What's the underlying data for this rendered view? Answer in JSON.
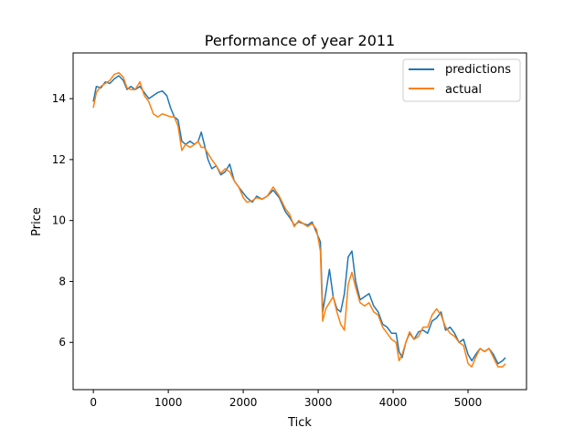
{
  "chart_data": {
    "type": "line",
    "title": "Performance of year 2011",
    "xlabel": "Tick",
    "ylabel": "Price",
    "xlim": [
      -270,
      5780
    ],
    "ylim": [
      4.45,
      15.5
    ],
    "xticks": [
      0,
      1000,
      2000,
      3000,
      4000,
      5000
    ],
    "yticks": [
      6,
      8,
      10,
      12,
      14
    ],
    "grid": false,
    "legend_position": "top-right",
    "series": [
      {
        "name": "predictions",
        "color": "#1f77b4",
        "points": [
          [
            0,
            13.9
          ],
          [
            40,
            14.4
          ],
          [
            100,
            14.35
          ],
          [
            160,
            14.55
          ],
          [
            220,
            14.5
          ],
          [
            280,
            14.65
          ],
          [
            340,
            14.75
          ],
          [
            400,
            14.6
          ],
          [
            450,
            14.3
          ],
          [
            500,
            14.4
          ],
          [
            560,
            14.3
          ],
          [
            620,
            14.4
          ],
          [
            680,
            14.2
          ],
          [
            740,
            14.0
          ],
          [
            800,
            14.1
          ],
          [
            860,
            14.2
          ],
          [
            920,
            14.25
          ],
          [
            980,
            14.1
          ],
          [
            1030,
            13.7
          ],
          [
            1080,
            13.4
          ],
          [
            1130,
            13.3
          ],
          [
            1180,
            12.6
          ],
          [
            1230,
            12.5
          ],
          [
            1290,
            12.6
          ],
          [
            1350,
            12.5
          ],
          [
            1400,
            12.6
          ],
          [
            1440,
            12.9
          ],
          [
            1480,
            12.5
          ],
          [
            1530,
            12.0
          ],
          [
            1580,
            11.7
          ],
          [
            1640,
            11.8
          ],
          [
            1700,
            11.5
          ],
          [
            1760,
            11.6
          ],
          [
            1820,
            11.85
          ],
          [
            1880,
            11.3
          ],
          [
            1940,
            11.1
          ],
          [
            2000,
            10.9
          ],
          [
            2050,
            10.75
          ],
          [
            2120,
            10.6
          ],
          [
            2180,
            10.8
          ],
          [
            2250,
            10.7
          ],
          [
            2320,
            10.8
          ],
          [
            2400,
            11.0
          ],
          [
            2480,
            10.75
          ],
          [
            2560,
            10.3
          ],
          [
            2620,
            10.1
          ],
          [
            2680,
            9.85
          ],
          [
            2740,
            9.95
          ],
          [
            2800,
            9.9
          ],
          [
            2860,
            9.85
          ],
          [
            2920,
            9.95
          ],
          [
            2980,
            9.6
          ],
          [
            3030,
            9.3
          ],
          [
            3060,
            7.0
          ],
          [
            3100,
            7.6
          ],
          [
            3150,
            8.4
          ],
          [
            3200,
            7.5
          ],
          [
            3250,
            7.1
          ],
          [
            3300,
            7.0
          ],
          [
            3350,
            7.6
          ],
          [
            3400,
            8.8
          ],
          [
            3450,
            9.0
          ],
          [
            3500,
            8.0
          ],
          [
            3560,
            7.4
          ],
          [
            3620,
            7.5
          ],
          [
            3680,
            7.6
          ],
          [
            3740,
            7.2
          ],
          [
            3800,
            7.0
          ],
          [
            3860,
            6.6
          ],
          [
            3920,
            6.5
          ],
          [
            3980,
            6.3
          ],
          [
            4040,
            6.3
          ],
          [
            4080,
            5.7
          ],
          [
            4120,
            5.5
          ],
          [
            4170,
            6.0
          ],
          [
            4220,
            6.3
          ],
          [
            4280,
            6.1
          ],
          [
            4340,
            6.35
          ],
          [
            4400,
            6.4
          ],
          [
            4460,
            6.3
          ],
          [
            4520,
            6.7
          ],
          [
            4580,
            6.8
          ],
          [
            4640,
            7.0
          ],
          [
            4700,
            6.4
          ],
          [
            4760,
            6.5
          ],
          [
            4820,
            6.3
          ],
          [
            4880,
            6.0
          ],
          [
            4940,
            6.1
          ],
          [
            5000,
            5.6
          ],
          [
            5050,
            5.4
          ],
          [
            5100,
            5.6
          ],
          [
            5160,
            5.8
          ],
          [
            5220,
            5.7
          ],
          [
            5280,
            5.8
          ],
          [
            5340,
            5.6
          ],
          [
            5400,
            5.3
          ],
          [
            5460,
            5.4
          ],
          [
            5500,
            5.5
          ]
        ]
      },
      {
        "name": "actual",
        "color": "#ff7f0e",
        "points": [
          [
            0,
            13.7
          ],
          [
            40,
            14.2
          ],
          [
            100,
            14.4
          ],
          [
            160,
            14.5
          ],
          [
            220,
            14.6
          ],
          [
            280,
            14.8
          ],
          [
            340,
            14.85
          ],
          [
            400,
            14.7
          ],
          [
            450,
            14.35
          ],
          [
            500,
            14.3
          ],
          [
            560,
            14.3
          ],
          [
            620,
            14.55
          ],
          [
            680,
            14.1
          ],
          [
            740,
            13.9
          ],
          [
            800,
            13.5
          ],
          [
            860,
            13.4
          ],
          [
            920,
            13.5
          ],
          [
            980,
            13.45
          ],
          [
            1030,
            13.4
          ],
          [
            1080,
            13.4
          ],
          [
            1130,
            13.1
          ],
          [
            1180,
            12.3
          ],
          [
            1230,
            12.5
          ],
          [
            1290,
            12.4
          ],
          [
            1350,
            12.5
          ],
          [
            1400,
            12.6
          ],
          [
            1440,
            12.4
          ],
          [
            1480,
            12.4
          ],
          [
            1530,
            12.2
          ],
          [
            1580,
            12.0
          ],
          [
            1640,
            11.8
          ],
          [
            1700,
            11.55
          ],
          [
            1760,
            11.7
          ],
          [
            1820,
            11.6
          ],
          [
            1880,
            11.3
          ],
          [
            1940,
            11.1
          ],
          [
            2000,
            10.75
          ],
          [
            2050,
            10.6
          ],
          [
            2120,
            10.65
          ],
          [
            2180,
            10.75
          ],
          [
            2250,
            10.7
          ],
          [
            2320,
            10.8
          ],
          [
            2400,
            11.1
          ],
          [
            2480,
            10.8
          ],
          [
            2560,
            10.4
          ],
          [
            2620,
            10.2
          ],
          [
            2680,
            9.8
          ],
          [
            2740,
            10.0
          ],
          [
            2800,
            9.9
          ],
          [
            2860,
            9.8
          ],
          [
            2920,
            9.9
          ],
          [
            2980,
            9.7
          ],
          [
            3030,
            9.0
          ],
          [
            3060,
            6.7
          ],
          [
            3100,
            7.1
          ],
          [
            3150,
            7.3
          ],
          [
            3200,
            7.5
          ],
          [
            3250,
            7.0
          ],
          [
            3300,
            6.6
          ],
          [
            3350,
            6.4
          ],
          [
            3400,
            7.9
          ],
          [
            3450,
            8.3
          ],
          [
            3500,
            7.8
          ],
          [
            3560,
            7.3
          ],
          [
            3620,
            7.2
          ],
          [
            3680,
            7.3
          ],
          [
            3740,
            7.0
          ],
          [
            3800,
            6.9
          ],
          [
            3860,
            6.5
          ],
          [
            3920,
            6.3
          ],
          [
            3980,
            6.1
          ],
          [
            4040,
            6.0
          ],
          [
            4080,
            5.4
          ],
          [
            4120,
            5.6
          ],
          [
            4170,
            6.0
          ],
          [
            4220,
            6.35
          ],
          [
            4280,
            6.1
          ],
          [
            4340,
            6.2
          ],
          [
            4400,
            6.5
          ],
          [
            4460,
            6.5
          ],
          [
            4520,
            6.9
          ],
          [
            4580,
            7.1
          ],
          [
            4640,
            6.9
          ],
          [
            4700,
            6.5
          ],
          [
            4760,
            6.3
          ],
          [
            4820,
            6.2
          ],
          [
            4880,
            6.0
          ],
          [
            4940,
            5.9
          ],
          [
            5000,
            5.3
          ],
          [
            5050,
            5.2
          ],
          [
            5100,
            5.5
          ],
          [
            5160,
            5.8
          ],
          [
            5220,
            5.7
          ],
          [
            5280,
            5.8
          ],
          [
            5340,
            5.5
          ],
          [
            5400,
            5.2
          ],
          [
            5460,
            5.2
          ],
          [
            5500,
            5.3
          ]
        ]
      }
    ]
  }
}
